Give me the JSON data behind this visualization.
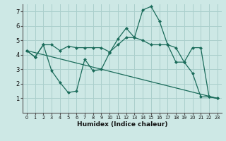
{
  "xlabel": "Humidex (Indice chaleur)",
  "xlim": [
    -0.5,
    23.5
  ],
  "ylim": [
    0,
    7.5
  ],
  "xticks": [
    0,
    1,
    2,
    3,
    4,
    5,
    6,
    7,
    8,
    9,
    10,
    11,
    12,
    13,
    14,
    15,
    16,
    17,
    18,
    19,
    20,
    21,
    22,
    23
  ],
  "yticks": [
    1,
    2,
    3,
    4,
    5,
    6,
    7
  ],
  "bg_color": "#cde8e5",
  "grid_color": "#aacfcc",
  "line_color": "#1a6b5a",
  "line1_x": [
    0,
    1,
    2,
    3,
    4,
    5,
    6,
    7,
    8,
    9,
    10,
    11,
    12,
    13,
    14,
    15,
    16,
    17,
    18,
    19,
    20,
    21,
    22,
    23
  ],
  "line1_y": [
    4.3,
    3.85,
    4.7,
    4.7,
    4.3,
    4.6,
    4.5,
    4.5,
    4.5,
    4.5,
    4.2,
    4.7,
    5.2,
    5.2,
    5.0,
    4.7,
    4.7,
    4.7,
    4.5,
    3.5,
    4.5,
    4.5,
    1.1,
    1.0
  ],
  "line2_x": [
    0,
    1,
    2,
    3,
    4,
    5,
    6,
    7,
    8,
    9,
    10,
    11,
    12,
    13,
    14,
    15,
    16,
    17,
    18,
    19,
    20,
    21,
    22,
    23
  ],
  "line2_y": [
    4.3,
    3.85,
    4.7,
    2.9,
    2.1,
    1.4,
    1.5,
    3.7,
    2.9,
    3.0,
    4.15,
    5.1,
    5.85,
    5.2,
    7.1,
    7.35,
    6.35,
    4.7,
    3.5,
    3.5,
    2.75,
    1.1,
    1.1,
    1.0
  ],
  "line3_x": [
    0,
    23
  ],
  "line3_y": [
    4.3,
    1.0
  ]
}
